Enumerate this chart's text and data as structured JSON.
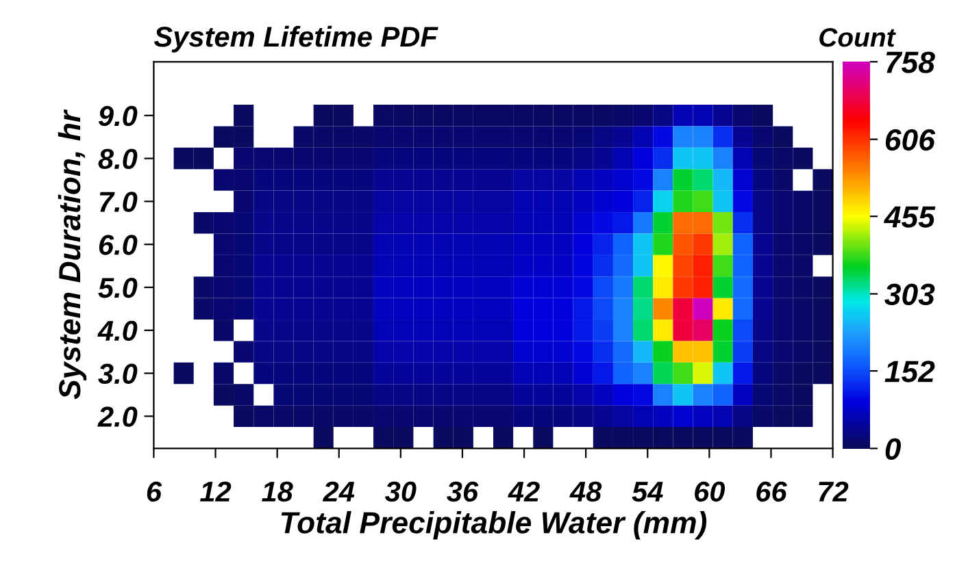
{
  "chart_data": {
    "type": "heatmap",
    "title": "System Lifetime PDF",
    "xlabel": "Total Precipitable Water (mm)",
    "ylabel": "System Duration, hr",
    "clabel": "Count",
    "x": [
      6.97,
      8.91,
      10.85,
      12.79,
      14.74,
      16.68,
      18.62,
      20.56,
      22.5,
      24.44,
      26.38,
      28.32,
      30.26,
      32.21,
      34.15,
      36.09,
      38.03,
      39.97,
      41.91,
      43.85,
      45.79,
      47.74,
      49.68,
      51.62,
      53.56,
      55.5,
      57.44,
      59.38,
      61.32,
      63.26,
      65.21,
      67.15,
      69.09,
      71.03
    ],
    "y": [
      9.0,
      8.5,
      8.0,
      7.5,
      7.0,
      6.5,
      6.0,
      5.5,
      5.0,
      4.5,
      4.0,
      3.5,
      3.0,
      2.5,
      2.0,
      1.5
    ],
    "xlim": [
      6,
      72
    ],
    "ylim": [
      1.25,
      10.25
    ],
    "xticks": [
      6,
      12,
      18,
      24,
      30,
      36,
      42,
      48,
      54,
      60,
      66,
      72
    ],
    "yticks": [
      {
        "value": 2,
        "label": "2.0"
      },
      {
        "value": 3,
        "label": "3.0"
      },
      {
        "value": 4,
        "label": "4.0"
      },
      {
        "value": 5,
        "label": "5.0"
      },
      {
        "value": 6,
        "label": "6.0"
      },
      {
        "value": 7,
        "label": "7.0"
      },
      {
        "value": 8,
        "label": "8.0"
      },
      {
        "value": 9,
        "label": "9.0"
      }
    ],
    "clim": [
      0,
      758
    ],
    "cticks": [
      0,
      152,
      303,
      455,
      606,
      758
    ],
    "grid": false,
    "cells": [
      [
        null,
        null,
        null,
        null,
        5,
        null,
        null,
        null,
        5,
        5,
        null,
        8,
        8,
        8,
        8,
        8,
        8,
        8,
        8,
        8,
        8,
        8,
        8,
        10,
        15,
        30,
        60,
        60,
        40,
        15,
        5,
        null,
        null,
        null
      ],
      [
        null,
        null,
        null,
        5,
        5,
        null,
        null,
        10,
        10,
        10,
        10,
        15,
        15,
        15,
        15,
        15,
        15,
        15,
        15,
        15,
        15,
        20,
        30,
        40,
        60,
        100,
        200,
        200,
        130,
        40,
        15,
        5,
        null,
        null
      ],
      [
        null,
        5,
        5,
        null,
        15,
        15,
        15,
        15,
        15,
        15,
        15,
        25,
        25,
        25,
        25,
        25,
        25,
        25,
        25,
        25,
        25,
        30,
        40,
        60,
        90,
        130,
        260,
        260,
        200,
        60,
        20,
        10,
        5,
        null
      ],
      [
        null,
        null,
        null,
        15,
        15,
        25,
        25,
        25,
        25,
        25,
        25,
        40,
        40,
        40,
        40,
        40,
        40,
        40,
        50,
        50,
        50,
        60,
        70,
        80,
        100,
        200,
        350,
        330,
        250,
        80,
        25,
        10,
        null,
        5
      ],
      [
        null,
        null,
        null,
        null,
        15,
        30,
        30,
        30,
        30,
        30,
        30,
        50,
        50,
        50,
        50,
        50,
        50,
        50,
        60,
        60,
        60,
        70,
        80,
        90,
        120,
        270,
        370,
        380,
        260,
        100,
        30,
        15,
        10,
        5
      ],
      [
        null,
        null,
        10,
        15,
        20,
        35,
        35,
        35,
        35,
        35,
        35,
        55,
        55,
        55,
        55,
        55,
        55,
        55,
        65,
        65,
        65,
        80,
        100,
        110,
        190,
        350,
        560,
        560,
        400,
        130,
        35,
        15,
        10,
        5
      ],
      [
        null,
        null,
        null,
        15,
        20,
        35,
        35,
        35,
        35,
        35,
        35,
        60,
        60,
        60,
        60,
        60,
        60,
        60,
        70,
        70,
        70,
        90,
        120,
        170,
        260,
        370,
        580,
        600,
        420,
        170,
        40,
        15,
        10,
        5
      ],
      [
        null,
        null,
        null,
        15,
        20,
        40,
        40,
        40,
        40,
        40,
        40,
        65,
        65,
        65,
        65,
        65,
        65,
        65,
        75,
        75,
        75,
        95,
        130,
        180,
        260,
        460,
        590,
        620,
        380,
        170,
        40,
        15,
        10,
        null
      ],
      [
        null,
        null,
        10,
        15,
        20,
        40,
        40,
        40,
        40,
        40,
        40,
        70,
        70,
        70,
        70,
        70,
        70,
        70,
        85,
        85,
        85,
        100,
        150,
        190,
        330,
        470,
        600,
        620,
        350,
        180,
        40,
        15,
        10,
        5
      ],
      [
        null,
        null,
        10,
        15,
        20,
        40,
        40,
        40,
        40,
        40,
        40,
        70,
        70,
        70,
        70,
        70,
        70,
        70,
        90,
        90,
        90,
        110,
        150,
        200,
        320,
        540,
        680,
        758,
        470,
        180,
        40,
        15,
        10,
        5
      ],
      [
        null,
        null,
        null,
        10,
        null,
        35,
        35,
        35,
        35,
        35,
        35,
        65,
        65,
        65,
        65,
        65,
        65,
        65,
        90,
        90,
        90,
        110,
        140,
        200,
        330,
        470,
        680,
        700,
        360,
        150,
        35,
        15,
        10,
        5
      ],
      [
        null,
        null,
        null,
        null,
        15,
        30,
        30,
        30,
        30,
        30,
        30,
        55,
        55,
        55,
        55,
        55,
        55,
        55,
        80,
        80,
        80,
        100,
        130,
        180,
        250,
        360,
        500,
        500,
        350,
        140,
        30,
        15,
        10,
        5
      ],
      [
        null,
        5,
        null,
        10,
        null,
        25,
        25,
        25,
        25,
        25,
        25,
        45,
        45,
        45,
        45,
        45,
        45,
        45,
        65,
        65,
        65,
        85,
        110,
        170,
        200,
        340,
        380,
        440,
        260,
        110,
        25,
        10,
        5,
        5
      ],
      [
        null,
        null,
        null,
        5,
        10,
        null,
        20,
        20,
        20,
        20,
        20,
        30,
        30,
        30,
        30,
        30,
        30,
        30,
        45,
        45,
        45,
        55,
        70,
        90,
        100,
        200,
        260,
        200,
        170,
        70,
        20,
        10,
        5,
        null
      ],
      [
        null,
        null,
        null,
        null,
        5,
        10,
        10,
        10,
        10,
        10,
        10,
        15,
        15,
        15,
        15,
        15,
        15,
        15,
        25,
        25,
        25,
        30,
        40,
        50,
        60,
        70,
        80,
        70,
        60,
        30,
        10,
        5,
        5,
        null
      ],
      [
        null,
        null,
        null,
        null,
        null,
        null,
        null,
        null,
        5,
        null,
        null,
        5,
        5,
        null,
        5,
        5,
        null,
        5,
        null,
        5,
        null,
        null,
        5,
        5,
        5,
        5,
        5,
        5,
        5,
        5,
        null,
        null,
        null,
        null
      ]
    ]
  }
}
